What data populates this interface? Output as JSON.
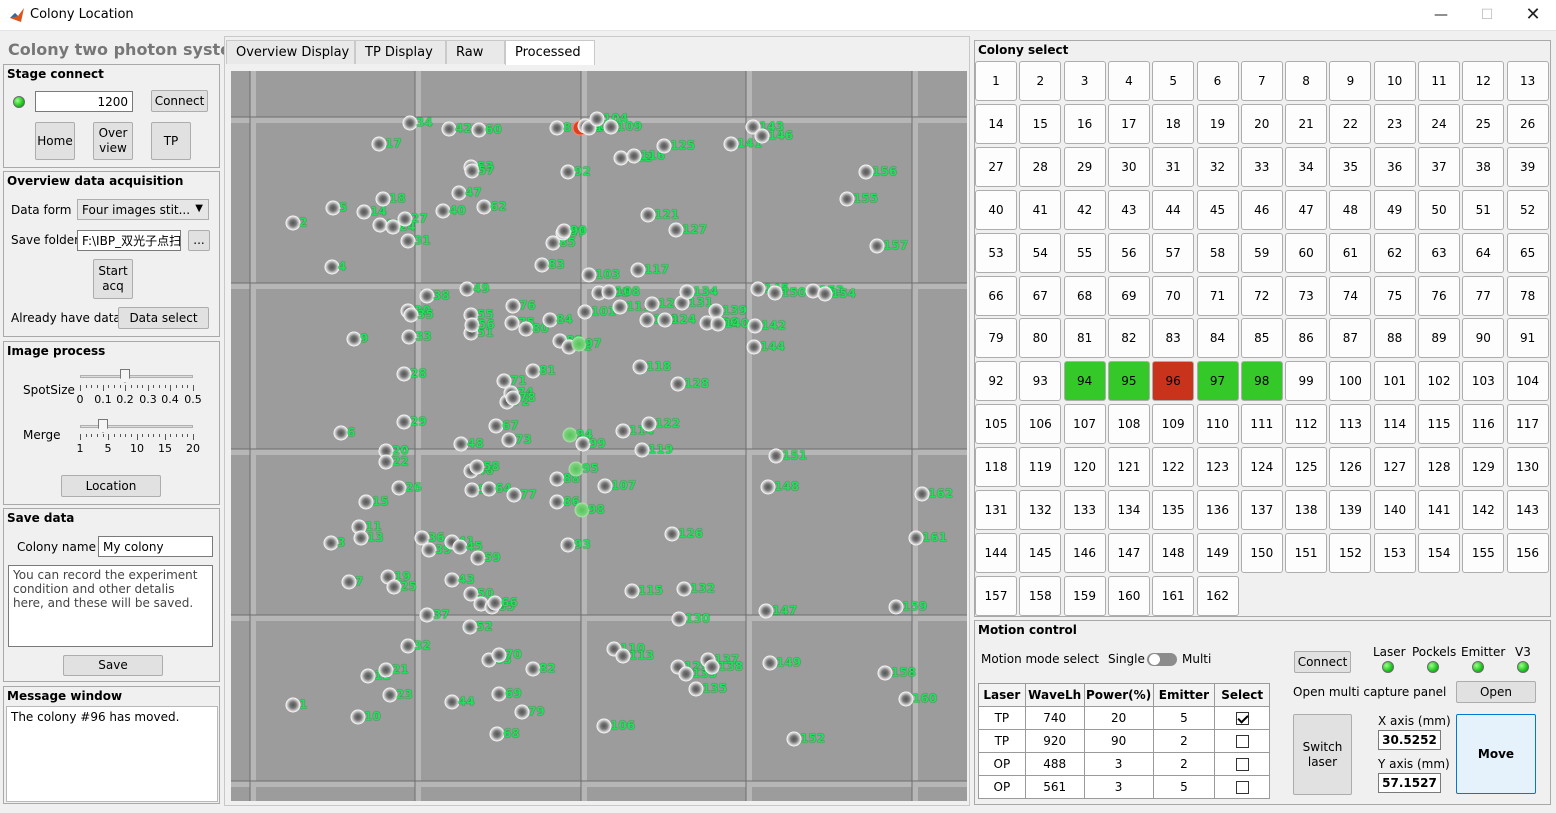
{
  "window": {
    "title": "Colony Location"
  },
  "left": {
    "app_title": "Colony two photon system",
    "stage": {
      "title": "Stage connect",
      "value": "1200",
      "connect": "Connect",
      "home": "Home",
      "overview": "Over\nview",
      "tp": "TP"
    },
    "overview": {
      "title": "Overview data acquisition",
      "data_form_label": "Data form",
      "data_form_value": "Four images stit...",
      "save_folder_label": "Save folder",
      "save_folder_value": "F:\\IBP_双光子点扫",
      "browse": "...",
      "start": "Start\nacq",
      "already_label": "Already have data",
      "data_select": "Data select"
    },
    "image": {
      "title": "Image process",
      "spot_label": "SpotSize",
      "spot_ticks": [
        "0",
        "0.1",
        "0.2",
        "0.3",
        "0.4",
        "0.5"
      ],
      "spot_value": 0.2,
      "merge_label": "Merge",
      "merge_ticks": [
        "1",
        "5",
        "10",
        "15",
        "20"
      ],
      "merge_value": 5,
      "location": "Location"
    },
    "save": {
      "title": "Save data",
      "name_label": "Colony name",
      "name_value": "My colony",
      "notes": "You can record the experiment condition and other detalis here, and these will be saved.",
      "save": "Save"
    },
    "message": {
      "title": "Message window",
      "text": "The colony #96 has moved."
    }
  },
  "tabs": [
    "Overview Display",
    "TP Display",
    "Raw",
    "Processed"
  ],
  "active_tab": "Processed",
  "colony_select": {
    "title": "Colony select",
    "count": 162,
    "green": [
      94,
      95,
      97,
      98
    ],
    "red": [
      96
    ]
  },
  "motion": {
    "title": "Motion control",
    "mode_label": "Motion mode select",
    "single": "Single",
    "multi": "Multi",
    "connect": "Connect",
    "indicators": [
      "Laser",
      "Pockels",
      "Emitter",
      "V3"
    ],
    "table_headers": [
      "Laser",
      "WaveLh",
      "Power(%)",
      "Emitter",
      "Select"
    ],
    "rows": [
      [
        "TP",
        "740",
        "20",
        "5",
        true
      ],
      [
        "TP",
        "920",
        "90",
        "2",
        false
      ],
      [
        "OP",
        "488",
        "3",
        "2",
        false
      ],
      [
        "OP",
        "561",
        "3",
        "5",
        false
      ]
    ],
    "open_label": "Open multi capture panel",
    "open": "Open",
    "switch": "Switch\nlaser",
    "x_label": "X axis (mm)",
    "x_value": "30.5252",
    "y_label": "Y axis (mm)",
    "y_value": "57.1527",
    "move": "Move"
  },
  "colonies": [
    [
      "1",
      62,
      634
    ],
    [
      "2",
      62,
      152
    ],
    [
      "3",
      100,
      472
    ],
    [
      "4",
      101,
      196
    ],
    [
      "5",
      102,
      137
    ],
    [
      "6",
      110,
      362
    ],
    [
      "7",
      118,
      511
    ],
    [
      "8",
      326,
      57
    ],
    [
      "9",
      123,
      268
    ],
    [
      "10",
      127,
      646
    ],
    [
      "11",
      128,
      456
    ],
    [
      "12",
      137,
      605
    ],
    [
      "13",
      130,
      467
    ],
    [
      "14",
      133,
      141
    ],
    [
      "15",
      135,
      431
    ],
    [
      "16",
      149,
      154
    ],
    [
      "17",
      148,
      73
    ],
    [
      "18",
      152,
      128
    ],
    [
      "19",
      157,
      506
    ],
    [
      "20",
      155,
      380
    ],
    [
      "21",
      155,
      599
    ],
    [
      "22",
      155,
      391
    ],
    [
      "23",
      159,
      624
    ],
    [
      "24",
      162,
      156
    ],
    [
      "25",
      163,
      516
    ],
    [
      "26",
      168,
      417
    ],
    [
      "27",
      174,
      148
    ],
    [
      "28",
      173,
      303
    ],
    [
      "29",
      173,
      351
    ],
    [
      "30",
      177,
      240
    ],
    [
      "31",
      177,
      170
    ],
    [
      "32",
      177,
      575
    ],
    [
      "33",
      178,
      266
    ],
    [
      "34",
      179,
      52
    ],
    [
      "35",
      180,
      244
    ],
    [
      "36",
      191,
      467
    ],
    [
      "37",
      196,
      544
    ],
    [
      "38",
      196,
      225
    ],
    [
      "39",
      198,
      479
    ],
    [
      "40",
      212,
      140
    ],
    [
      "41",
      221,
      471
    ],
    [
      "42",
      218,
      58
    ],
    [
      "43",
      221,
      509
    ],
    [
      "44",
      221,
      631
    ],
    [
      "45",
      229,
      476
    ],
    [
      "46",
      240,
      400
    ],
    [
      "47",
      228,
      122
    ],
    [
      "48",
      230,
      373
    ],
    [
      "49",
      236,
      218
    ],
    [
      "50",
      240,
      523
    ],
    [
      "51",
      240,
      262
    ],
    [
      "52",
      239,
      556
    ],
    [
      "53",
      240,
      96
    ],
    [
      "54",
      241,
      419
    ],
    [
      "55",
      240,
      244
    ],
    [
      "56",
      241,
      254
    ],
    [
      "57",
      241,
      100
    ],
    [
      "58",
      246,
      396
    ],
    [
      "59",
      247,
      487
    ],
    [
      "60",
      248,
      59
    ],
    [
      "61",
      250,
      533
    ],
    [
      "62",
      253,
      136
    ],
    [
      "63",
      258,
      589
    ],
    [
      "64",
      258,
      418
    ],
    [
      "65",
      261,
      536
    ],
    [
      "66",
      264,
      532
    ],
    [
      "67",
      265,
      355
    ],
    [
      "68",
      266,
      663
    ],
    [
      "69",
      268,
      623
    ],
    [
      "70",
      268,
      584
    ],
    [
      "71",
      273,
      310
    ],
    [
      "72",
      276,
      331
    ],
    [
      "73",
      278,
      369
    ],
    [
      "74",
      280,
      322
    ],
    [
      "75",
      281,
      252
    ],
    [
      "76",
      282,
      235
    ],
    [
      "77",
      283,
      424
    ],
    [
      "78",
      282,
      327
    ],
    [
      "79",
      291,
      641
    ],
    [
      "80",
      295,
      258
    ],
    [
      "81",
      302,
      300
    ],
    [
      "82",
      302,
      598
    ],
    [
      "83",
      311,
      194
    ],
    [
      "84",
      319,
      249
    ],
    [
      "85",
      322,
      172
    ],
    [
      "86",
      326,
      431
    ],
    [
      "87",
      332,
      162
    ],
    [
      "88",
      326,
      408
    ],
    [
      "89",
      329,
      270
    ],
    [
      "90",
      333,
      160
    ],
    [
      "91",
      338,
      276
    ],
    [
      "92",
      337,
      101
    ],
    [
      "93",
      337,
      474
    ],
    [
      "94",
      339,
      364
    ],
    [
      "95",
      345,
      398
    ],
    [
      "96",
      349,
      57
    ],
    [
      "97",
      348,
      273
    ],
    [
      "98",
      351,
      439
    ],
    [
      "99",
      352,
      373
    ],
    [
      "100",
      354,
      55
    ],
    [
      "101",
      354,
      241
    ],
    [
      "102",
      358,
      57
    ],
    [
      "103",
      358,
      204
    ],
    [
      "104",
      366,
      48
    ],
    [
      "105",
      368,
      222
    ],
    [
      "106",
      373,
      655
    ],
    [
      "107",
      374,
      415
    ],
    [
      "108",
      378,
      221
    ],
    [
      "109",
      380,
      56
    ],
    [
      "110",
      383,
      578
    ],
    [
      "111",
      389,
      236
    ],
    [
      "112",
      390,
      87
    ],
    [
      "113",
      392,
      585
    ],
    [
      "114",
      392,
      360
    ],
    [
      "115",
      401,
      520
    ],
    [
      "116",
      403,
      85
    ],
    [
      "117",
      407,
      199
    ],
    [
      "118",
      409,
      296
    ],
    [
      "119",
      411,
      379
    ],
    [
      "120",
      416,
      249
    ],
    [
      "121",
      417,
      144
    ],
    [
      "122",
      418,
      353
    ],
    [
      "123",
      421,
      233
    ],
    [
      "124",
      434,
      249
    ],
    [
      "125",
      433,
      75
    ],
    [
      "126",
      441,
      463
    ],
    [
      "127",
      445,
      159
    ],
    [
      "128",
      447,
      313
    ],
    [
      "129",
      447,
      596
    ],
    [
      "130",
      448,
      548
    ],
    [
      "131",
      451,
      232
    ],
    [
      "132",
      453,
      518
    ],
    [
      "133",
      455,
      603
    ],
    [
      "134",
      456,
      221
    ],
    [
      "135",
      465,
      618
    ],
    [
      "136",
      476,
      252
    ],
    [
      "137",
      477,
      589
    ],
    [
      "138",
      481,
      596
    ],
    [
      "139",
      485,
      240
    ],
    [
      "140",
      487,
      253
    ],
    [
      "141",
      500,
      73
    ],
    [
      "142",
      524,
      255
    ],
    [
      "143",
      522,
      56
    ],
    [
      "144",
      523,
      276
    ],
    [
      "145",
      527,
      218
    ],
    [
      "146",
      531,
      65
    ],
    [
      "147",
      535,
      540
    ],
    [
      "148",
      537,
      416
    ],
    [
      "149",
      539,
      592
    ],
    [
      "150",
      544,
      222
    ],
    [
      "151",
      545,
      385
    ],
    [
      "152",
      563,
      668
    ],
    [
      "153",
      582,
      220
    ],
    [
      "154",
      594,
      223
    ],
    [
      "155",
      616,
      128
    ],
    [
      "156",
      635,
      101
    ],
    [
      "157",
      646,
      175
    ],
    [
      "158",
      654,
      602
    ],
    [
      "159",
      665,
      536
    ],
    [
      "160",
      675,
      628
    ],
    [
      "161",
      685,
      467
    ],
    [
      "162",
      691,
      423
    ]
  ]
}
